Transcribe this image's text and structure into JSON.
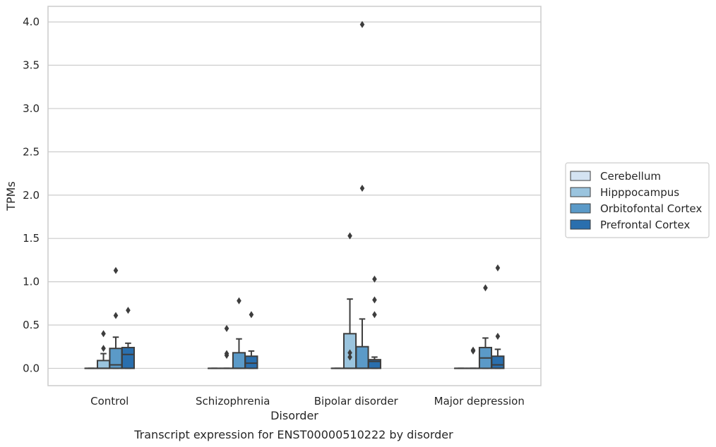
{
  "chart_data": {
    "type": "boxplot",
    "xlabel": "Disorder",
    "ylabel": "TPMs",
    "caption": "Transcript expression for ENST00000510222 by disorder",
    "ylim": [
      -0.2,
      4.18
    ],
    "yticks": [
      "0.0",
      "0.5",
      "1.0",
      "1.5",
      "2.0",
      "2.5",
      "3.0",
      "3.5",
      "4.0"
    ],
    "grid": "horizontal",
    "legend_position": "right",
    "categories": [
      "Control",
      "Schizophrenia",
      "Bipolar disorder",
      "Major depression"
    ],
    "series": [
      {
        "name": "Cerebellum",
        "color": "#d4e3f2",
        "boxes": [
          {
            "q1": 0,
            "median": 0,
            "q3": 0,
            "whisker_low": 0,
            "whisker_high": 0,
            "outliers": []
          },
          {
            "q1": 0,
            "median": 0,
            "q3": 0,
            "whisker_low": 0,
            "whisker_high": 0,
            "outliers": []
          },
          {
            "q1": 0,
            "median": 0,
            "q3": 0,
            "whisker_low": 0,
            "whisker_high": 0,
            "outliers": []
          },
          {
            "q1": 0,
            "median": 0,
            "q3": 0,
            "whisker_low": 0,
            "whisker_high": 0,
            "outliers": []
          }
        ]
      },
      {
        "name": "Hipppocampus",
        "color": "#9ac4de",
        "boxes": [
          {
            "q1": 0,
            "median": 0,
            "q3": 0.09,
            "whisker_low": 0,
            "whisker_high": 0.17,
            "outliers": [
              0.23,
              0.4
            ]
          },
          {
            "q1": 0,
            "median": 0,
            "q3": 0,
            "whisker_low": 0,
            "whisker_high": 0,
            "outliers": [
              0.15,
              0.17,
              0.46
            ]
          },
          {
            "q1": 0,
            "median": 0,
            "q3": 0.4,
            "whisker_low": 0,
            "whisker_high": 0.8,
            "outliers": [
              0.13,
              0.18,
              1.53
            ]
          },
          {
            "q1": 0,
            "median": 0,
            "q3": 0,
            "whisker_low": 0,
            "whisker_high": 0,
            "outliers": [
              0.2,
              0.21
            ]
          }
        ]
      },
      {
        "name": "Orbitofontal Cortex",
        "color": "#5b9ac8",
        "boxes": [
          {
            "q1": 0,
            "median": 0.04,
            "q3": 0.23,
            "whisker_low": 0,
            "whisker_high": 0.36,
            "outliers": [
              0.61,
              1.13
            ]
          },
          {
            "q1": 0,
            "median": 0,
            "q3": 0.18,
            "whisker_low": 0,
            "whisker_high": 0.34,
            "outliers": [
              0.78
            ]
          },
          {
            "q1": 0,
            "median": 0,
            "q3": 0.25,
            "whisker_low": 0,
            "whisker_high": 0.57,
            "outliers": [
              2.08,
              3.97
            ]
          },
          {
            "q1": 0,
            "median": 0.12,
            "q3": 0.24,
            "whisker_low": 0,
            "whisker_high": 0.35,
            "outliers": [
              0.93
            ]
          }
        ]
      },
      {
        "name": "Prefrontal Cortex",
        "color": "#2a6fae",
        "boxes": [
          {
            "q1": 0,
            "median": 0.16,
            "q3": 0.24,
            "whisker_low": 0,
            "whisker_high": 0.29,
            "outliers": [
              0.67
            ]
          },
          {
            "q1": 0,
            "median": 0.06,
            "q3": 0.14,
            "whisker_low": 0,
            "whisker_high": 0.2,
            "outliers": [
              0.62
            ]
          },
          {
            "q1": 0,
            "median": 0.08,
            "q3": 0.1,
            "whisker_low": 0,
            "whisker_high": 0.13,
            "outliers": [
              0.62,
              0.79,
              1.03
            ]
          },
          {
            "q1": 0,
            "median": 0.04,
            "q3": 0.14,
            "whisker_low": 0,
            "whisker_high": 0.22,
            "outliers": [
              0.37,
              1.16
            ]
          }
        ]
      }
    ]
  }
}
